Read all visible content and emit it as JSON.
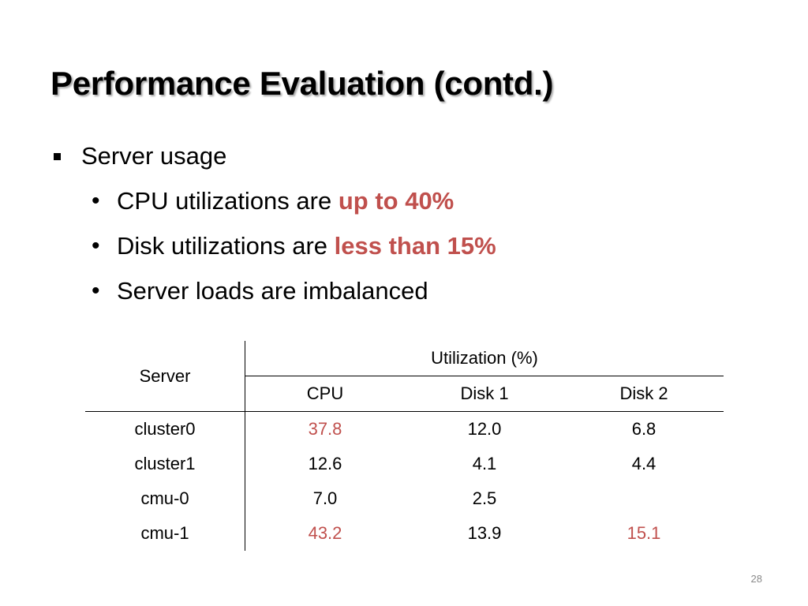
{
  "slide": {
    "title": "Performance Evaluation (contd.)",
    "page_number": "28"
  },
  "bullets": {
    "level1": "Server usage",
    "items": [
      {
        "text": "CPU utilizations are ",
        "highlight": "up to 40%"
      },
      {
        "text": "Disk utilizations are ",
        "highlight": "less than 15%"
      },
      {
        "text": "Server loads are imbalanced",
        "highlight": ""
      }
    ]
  },
  "table": {
    "server_header": "Server",
    "group_header": "Utilization (%)",
    "columns": [
      "CPU",
      "Disk 1",
      "Disk 2"
    ],
    "rows": [
      {
        "server": "cluster0",
        "cpu": "37.8",
        "disk1": "12.0",
        "disk2": "6.8",
        "cpu_highlight": true,
        "disk2_highlight": false
      },
      {
        "server": "cluster1",
        "cpu": "12.6",
        "disk1": "4.1",
        "disk2": "4.4",
        "cpu_highlight": false,
        "disk2_highlight": false
      },
      {
        "server": "cmu-0",
        "cpu": "7.0",
        "disk1": "2.5",
        "disk2": "",
        "cpu_highlight": false,
        "disk2_highlight": false
      },
      {
        "server": "cmu-1",
        "cpu": "43.2",
        "disk1": "13.9",
        "disk2": "15.1",
        "cpu_highlight": true,
        "disk2_highlight": true
      }
    ],
    "highlight_color": "#c0504d"
  }
}
